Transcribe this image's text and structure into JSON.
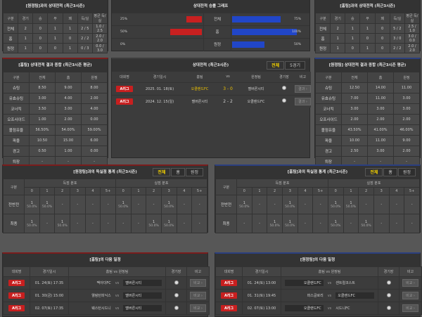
{
  "h2h_left": {
    "title": "[원정팀]과의 상대전적 (최근3시즌)",
    "headers": [
      "구분",
      "경기",
      "승",
      "무",
      "패",
      "득/실",
      "평균 득/실"
    ],
    "rows": [
      [
        "전체",
        "2",
        "0",
        "1",
        "1",
        "2 / 5",
        "1.0 / 2.5"
      ],
      [
        "홈",
        "1",
        "0",
        "1",
        "0",
        "2 / 2",
        "2.0 / 2.0"
      ],
      [
        "원정",
        "1",
        "0",
        "0",
        "1",
        "0 / 3",
        "0.0 / 3.0"
      ]
    ]
  },
  "h2h_right": {
    "title": "[홈팀]과의 상대전적 (최근3시즌)",
    "headers": [
      "구분",
      "경기",
      "승",
      "무",
      "패",
      "득/실",
      "평균 득/실"
    ],
    "rows": [
      [
        "전체",
        "2",
        "1",
        "1",
        "0",
        "5 / 2",
        "2.5 / 1.0"
      ],
      [
        "홈",
        "1",
        "1",
        "0",
        "0",
        "3 / 0",
        "3.0 / 0.0"
      ],
      [
        "원정",
        "1",
        "0",
        "1",
        "0",
        "2 / 2",
        "2.0 / 2.0"
      ]
    ]
  },
  "graph": {
    "title": "상대전적 승률 그래프",
    "rows": [
      {
        "label": "전체",
        "home": 25,
        "home_label": "25%",
        "away": 75,
        "away_label": "75%"
      },
      {
        "label": "홈",
        "home": 50,
        "home_label": "50%",
        "away": 100,
        "away_label": "100%"
      },
      {
        "label": "원정",
        "home": 0,
        "home_label": "0%",
        "away": 50,
        "away_label": "50%"
      }
    ],
    "home_color": "#c82020",
    "away_color": "#2146c8"
  },
  "sum_left": {
    "title": "[홈팀] 상대전적 결과 종합 (최근3시즌 평균)",
    "headers": [
      "구분",
      "전체",
      "홈",
      "원정"
    ],
    "rows": [
      [
        "슈팅",
        "8.50",
        "9.00",
        "8.00"
      ],
      [
        "유효슈팅",
        "3.00",
        "4.00",
        "2.00"
      ],
      [
        "코너킥",
        "3.50",
        "3.00",
        "4.00"
      ],
      [
        "오프사이드",
        "1.00",
        "2.00",
        "0.00"
      ],
      [
        "볼점유율",
        "56.50%",
        "54.00%",
        "59.00%"
      ],
      [
        "파울",
        "10.50",
        "15.00",
        "6.00"
      ],
      [
        "경고",
        "0.50",
        "1.00",
        "0.00"
      ],
      [
        "퇴장",
        "-",
        "-",
        "-"
      ]
    ]
  },
  "sum_right": {
    "title": "[원정팀] 상대전적 결과 종합 (최근3시즌 평균)",
    "headers": [
      "구분",
      "전체",
      "홈",
      "원정"
    ],
    "rows": [
      [
        "슈팅",
        "12.50",
        "14.00",
        "11.00"
      ],
      [
        "유효슈팅",
        "7.00",
        "11.00",
        "3.00"
      ],
      [
        "코너킥",
        "3.00",
        "3.00",
        "3.00"
      ],
      [
        "오프사이드",
        "2.00",
        "2.00",
        "2.00"
      ],
      [
        "볼점유율",
        "43.50%",
        "41.00%",
        "46.00%"
      ],
      [
        "파울",
        "10.00",
        "11.00",
        "9.00"
      ],
      [
        "경고",
        "2.50",
        "3.00",
        "2.00"
      ],
      [
        "퇴장",
        "-",
        "-",
        "-"
      ]
    ]
  },
  "recent": {
    "title": "상대전적 (최근3시즌)",
    "tabs": [
      "전체",
      "5경기"
    ],
    "headers": [
      "대회명",
      "경기일시",
      "홈팀",
      "vs",
      "원정팀",
      "경기장",
      "비고"
    ],
    "rows": [
      {
        "league": "A리그",
        "date": "2025. 01. 18(토)",
        "home": "오클랜드FC",
        "score": "3 - 0",
        "away": "멜버른시티",
        "btn": "결과 ›"
      },
      {
        "league": "A리그",
        "date": "2024. 12. 15(일)",
        "home": "멜버른시티",
        "score": "2 - 2",
        "away": "오클랜드FC",
        "btn": "결과 ›"
      }
    ]
  },
  "goals_left": {
    "title": "[원정팀]과의 득실점 통계 (최근3시즌)",
    "tabs": [
      "전체",
      "홈",
      "원정"
    ],
    "label_col": "구분",
    "scored": "득점 분포",
    "conceded": "실점 분포",
    "buckets": [
      "0",
      "1",
      "2",
      "3",
      "4",
      "5+"
    ],
    "rows": [
      {
        "label": "전반전",
        "cells": [
          [
            "1",
            "50.0%"
          ],
          [
            "1",
            "50.0%"
          ],
          [
            "-"
          ],
          [
            "-"
          ],
          [
            "-"
          ],
          [
            "-"
          ],
          [
            "1",
            "50.0%"
          ],
          [
            "-"
          ],
          [
            "-"
          ],
          [
            "1",
            "50.0%"
          ],
          [
            "-"
          ],
          [
            "-"
          ]
        ]
      },
      {
        "label": "최종",
        "cells": [
          [
            "1",
            "50.0%"
          ],
          [
            "-"
          ],
          [
            "1",
            "50.0%"
          ],
          [
            "-"
          ],
          [
            "-"
          ],
          [
            "-"
          ],
          [
            "-"
          ],
          [
            "-"
          ],
          [
            "1",
            "50.0%"
          ],
          [
            "1",
            "50.0%"
          ],
          [
            "-"
          ],
          [
            "-"
          ]
        ]
      }
    ]
  },
  "goals_right": {
    "title": "[홈팀]과의 득실점 통계 (최근3시즌)",
    "tabs": [
      "전체",
      "홈",
      "원정"
    ],
    "label_col": "구분",
    "scored": "득점 분포",
    "conceded": "실점 분포",
    "buckets": [
      "0",
      "1",
      "2",
      "3",
      "4",
      "5+"
    ],
    "rows": [
      {
        "label": "전반전",
        "cells": [
          [
            "1",
            "50.0%"
          ],
          [
            "-"
          ],
          [
            "-"
          ],
          [
            "1",
            "50.0%"
          ],
          [
            "-"
          ],
          [
            "-"
          ],
          [
            "1",
            "50.0%"
          ],
          [
            "1",
            "50.0%"
          ],
          [
            "-"
          ],
          [
            "-"
          ],
          [
            "-"
          ],
          [
            "-"
          ]
        ]
      },
      {
        "label": "최종",
        "cells": [
          [
            "-"
          ],
          [
            "-"
          ],
          [
            "1",
            "50.0%"
          ],
          [
            "1",
            "50.0%"
          ],
          [
            "-"
          ],
          [
            "-"
          ],
          [
            "1",
            "50.0%"
          ],
          [
            "-"
          ],
          [
            "1",
            "50.0%"
          ],
          [
            "-"
          ],
          [
            "-"
          ],
          [
            "-"
          ]
        ]
      }
    ]
  },
  "next_left": {
    "title": "[홈팀]의 다음 일정",
    "headers": [
      "대회명",
      "경기일시",
      "홈팀 vs 원정팀",
      "경기장",
      "비고"
    ],
    "rows": [
      {
        "league": "A리그",
        "date": "01. 24(토) 17:35",
        "home": "맥아더FC",
        "away": "멜버른시티",
        "hl": "away",
        "btn": "비교 ›"
      },
      {
        "league": "A리그",
        "date": "01. 30(금) 15:00",
        "home": "웰링턴피닉스",
        "away": "멜버른시티",
        "hl": "away",
        "btn": "비교 ›"
      },
      {
        "league": "A리그",
        "date": "02. 07(토) 17:35",
        "home": "웨스턴시드니",
        "away": "멜버른시티",
        "hl": "away",
        "btn": "비교 ›"
      }
    ]
  },
  "next_right": {
    "title": "[원정팀]의 다음 일정",
    "headers": [
      "대회명",
      "경기일시",
      "홈팀 vs 원정팀",
      "경기장",
      "비고"
    ],
    "rows": [
      {
        "league": "A리그",
        "date": "01. 24(토) 13:00",
        "home": "오클랜드FC",
        "away": "센트럴코스트",
        "hl": "home",
        "btn": "비교 ›"
      },
      {
        "league": "A리그",
        "date": "01. 31(토) 19:45",
        "home": "퍼스글로리",
        "away": "오클랜드FC",
        "hl": "away",
        "btn": "비교 ›"
      },
      {
        "league": "A리그",
        "date": "02. 07(토) 13:00",
        "home": "오클랜드FC",
        "away": "시드니FC",
        "hl": "home",
        "btn": "비교 ›"
      }
    ]
  },
  "vs": "vs"
}
